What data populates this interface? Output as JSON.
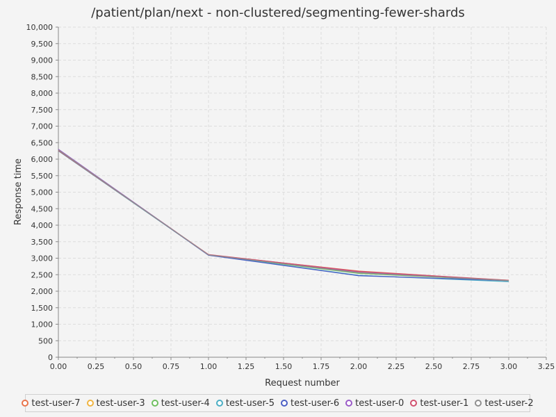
{
  "chart_data": {
    "type": "line",
    "title": "/patient/plan/next - non-clustered/segmenting-fewer-shards",
    "xlabel": "Request number",
    "ylabel": "Response time",
    "xlim": [
      0,
      3.25
    ],
    "ylim": [
      0,
      10000
    ],
    "x_ticks": [
      "0.00",
      "0.25",
      "0.50",
      "0.75",
      "1.00",
      "1.25",
      "1.50",
      "1.75",
      "2.00",
      "2.25",
      "2.50",
      "2.75",
      "3.00",
      "3.25"
    ],
    "y_ticks": [
      "0",
      "500",
      "1,000",
      "1,500",
      "2,000",
      "2,500",
      "3,000",
      "3,500",
      "4,000",
      "4,500",
      "5,000",
      "5,500",
      "6,000",
      "6,500",
      "7,000",
      "7,500",
      "8,000",
      "8,500",
      "9,000",
      "9,500",
      "10,000"
    ],
    "grid": true,
    "legend_position": "bottom",
    "x": [
      0,
      1,
      2,
      3
    ],
    "series": [
      {
        "name": "test-user-7",
        "color": "#e8734a",
        "values": [
          6270,
          3100,
          2610,
          2320
        ]
      },
      {
        "name": "test-user-3",
        "color": "#f0b440",
        "values": [
          6260,
          3100,
          2570,
          2330
        ]
      },
      {
        "name": "test-user-4",
        "color": "#6fbf5f",
        "values": [
          6280,
          3100,
          2540,
          2320
        ]
      },
      {
        "name": "test-user-5",
        "color": "#4aaec4",
        "values": [
          6250,
          3100,
          2480,
          2290
        ]
      },
      {
        "name": "test-user-6",
        "color": "#4a5ec4",
        "values": [
          6290,
          3090,
          2470,
          2320
        ]
      },
      {
        "name": "test-user-0",
        "color": "#9a5ac8",
        "values": [
          6300,
          3100,
          2590,
          2320
        ]
      },
      {
        "name": "test-user-1",
        "color": "#d0506e",
        "values": [
          6260,
          3110,
          2600,
          2330
        ]
      },
      {
        "name": "test-user-2",
        "color": "#8f8f8f",
        "values": [
          6280,
          3100,
          2560,
          2320
        ]
      }
    ]
  }
}
